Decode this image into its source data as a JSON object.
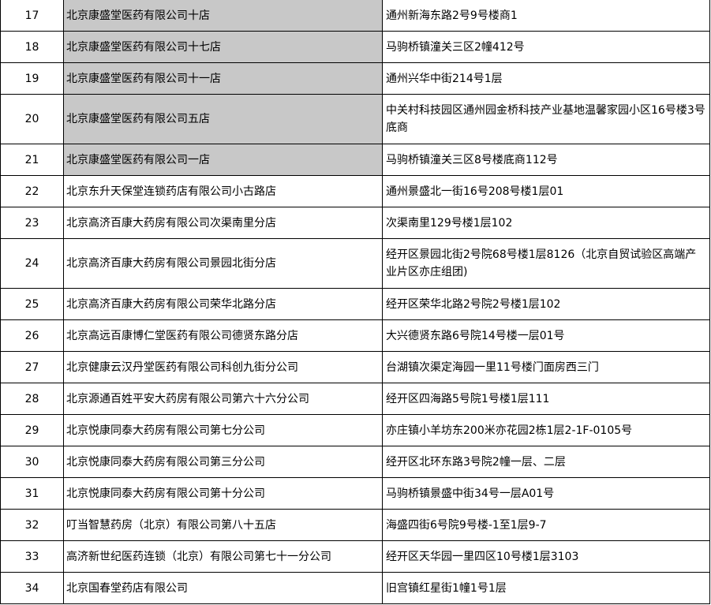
{
  "rows": [
    {
      "no": "17",
      "name": "北京康盛堂医药有限公司十店",
      "address": "通州新海东路2号9号楼商1",
      "highlight": true
    },
    {
      "no": "18",
      "name": "北京康盛堂医药有限公司十七店",
      "address": "马驹桥镇潼关三区2幢412号",
      "highlight": true
    },
    {
      "no": "19",
      "name": "北京康盛堂医药有限公司十一店",
      "address": "通州兴华中街214号1层",
      "highlight": true
    },
    {
      "no": "20",
      "name": "北京康盛堂医药有限公司五店",
      "address": "中关村科技园区通州园金桥科技产业基地温馨家园小区16号楼3号底商",
      "highlight": true,
      "tall": true
    },
    {
      "no": "21",
      "name": "北京康盛堂医药有限公司一店",
      "address": "马驹桥镇潼关三区8号楼底商112号",
      "highlight": true
    },
    {
      "no": "22",
      "name": "北京东升天保堂连锁药店有限公司小古路店",
      "address": "通州景盛北一街16号208号楼1层01"
    },
    {
      "no": "23",
      "name": "北京高济百康大药房有限公司次渠南里分店",
      "address": "次渠南里129号楼1层102"
    },
    {
      "no": "24",
      "name": "北京高济百康大药房有限公司景园北街分店",
      "address": "经开区景园北街2号院68号楼1层8126（北京自贸试验区高端产业片区亦庄组团)",
      "tall": true
    },
    {
      "no": "25",
      "name": "北京高济百康大药房有限公司荣华北路分店",
      "address": "经开区荣华北路2号院2号楼1层102"
    },
    {
      "no": "26",
      "name": "北京高远百康博仁堂医药有限公司德贤东路分店",
      "address": "大兴德贤东路6号院14号楼一层01号"
    },
    {
      "no": "27",
      "name": "北京健康云汉丹堂医药有限公司科创九街分公司",
      "address": "台湖镇次渠定海园一里11号楼门面房西三门"
    },
    {
      "no": "28",
      "name": "北京源通百姓平安大药房有限公司第六十六分公司",
      "address": "经开区四海路5号院1号楼1层111"
    },
    {
      "no": "29",
      "name": "北京悦康同泰大药房有限公司第七分公司",
      "address": "亦庄镇小羊坊东200米亦花园2栋1层2-1F-0105号"
    },
    {
      "no": "30",
      "name": "北京悦康同泰大药房有限公司第三分公司",
      "address": "经开区北环东路3号院2幢一层、二层"
    },
    {
      "no": "31",
      "name": "北京悦康同泰大药房有限公司第十分公司",
      "address": "马驹桥镇景盛中街34号一层A01号"
    },
    {
      "no": "32",
      "name": "叮当智慧药房（北京）有限公司第八十五店",
      "address": "海盛四街6号院9号楼-1至1层9-7"
    },
    {
      "no": "33",
      "name": "高济新世纪医药连锁（北京）有限公司第七十一分公司",
      "address": "经开区天华园一里四区10号楼1层3103"
    },
    {
      "no": "34",
      "name": "北京国春堂药店有限公司",
      "address": "旧宫镇红星街1幢1号1层"
    }
  ],
  "colors": {
    "highlight_fill": "#c8c8c8",
    "border": "#000000"
  }
}
